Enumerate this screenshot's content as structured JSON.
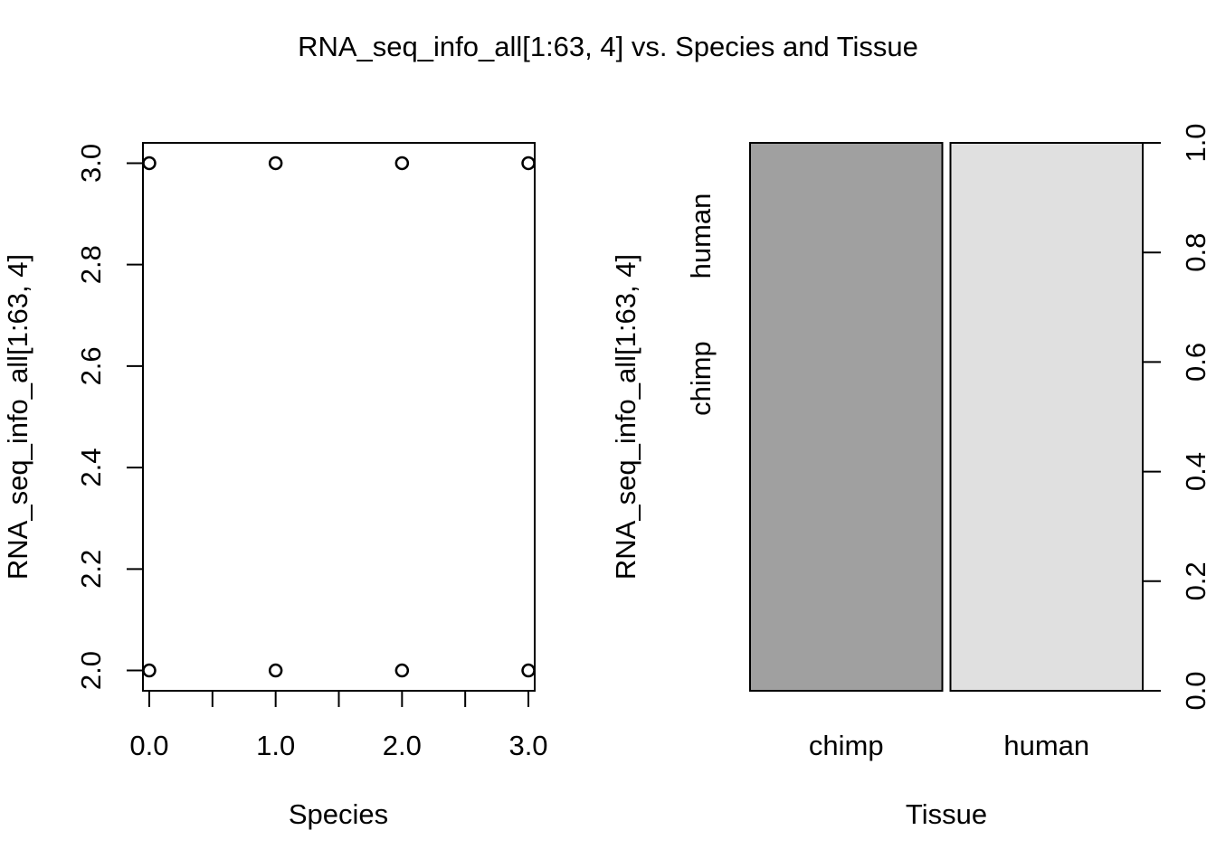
{
  "title": "RNA_seq_info_all[1:63, 4] vs. Species and Tissue",
  "chart_data": [
    {
      "type": "scatter",
      "xlabel": "Species",
      "ylabel": "RNA_seq_info_all[1:63, 4]",
      "xlim": [
        -0.05,
        3.05
      ],
      "ylim": [
        1.96,
        3.04
      ],
      "x_ticks": [
        0,
        0.5,
        1,
        1.5,
        2,
        2.5,
        3
      ],
      "x_tick_labels": [
        {
          "value": 0,
          "label": "0.0"
        },
        {
          "value": 1,
          "label": "1.0"
        },
        {
          "value": 2,
          "label": "2.0"
        },
        {
          "value": 3,
          "label": "3.0"
        }
      ],
      "y_ticks": [
        {
          "value": 2.0,
          "label": "2.0"
        },
        {
          "value": 2.2,
          "label": "2.2"
        },
        {
          "value": 2.4,
          "label": "2.4"
        },
        {
          "value": 2.6,
          "label": "2.6"
        },
        {
          "value": 2.8,
          "label": "2.8"
        },
        {
          "value": 3.0,
          "label": "3.0"
        }
      ],
      "points": [
        {
          "x": 0,
          "y": 3
        },
        {
          "x": 1,
          "y": 3
        },
        {
          "x": 2,
          "y": 3
        },
        {
          "x": 3,
          "y": 3
        },
        {
          "x": 0,
          "y": 2
        },
        {
          "x": 1,
          "y": 2
        },
        {
          "x": 2,
          "y": 2
        },
        {
          "x": 3,
          "y": 2
        }
      ],
      "grid": false
    },
    {
      "type": "bar",
      "subtype": "spineplot",
      "xlabel": "Tissue",
      "ylabel": "RNA_seq_info_all[1:63, 4]",
      "categories": [
        "chimp",
        "human"
      ],
      "category_widths": [
        0.5,
        0.5
      ],
      "levels": [
        "chimp",
        "human"
      ],
      "level_labels": [
        {
          "label": "chimp",
          "value": 0.57
        },
        {
          "label": "human",
          "value": 0.83
        }
      ],
      "bar_colors": [
        "#a0a0a0",
        "#e0e0e0"
      ],
      "bar_height": 1.0,
      "right_axis_ticks": [
        {
          "value": 0.0,
          "label": "0.0"
        },
        {
          "value": 0.2,
          "label": "0.2"
        },
        {
          "value": 0.4,
          "label": "0.4"
        },
        {
          "value": 0.6,
          "label": "0.6"
        },
        {
          "value": 0.8,
          "label": "0.8"
        },
        {
          "value": 1.0,
          "label": "1.0"
        }
      ],
      "ylim": [
        0,
        1
      ]
    }
  ]
}
